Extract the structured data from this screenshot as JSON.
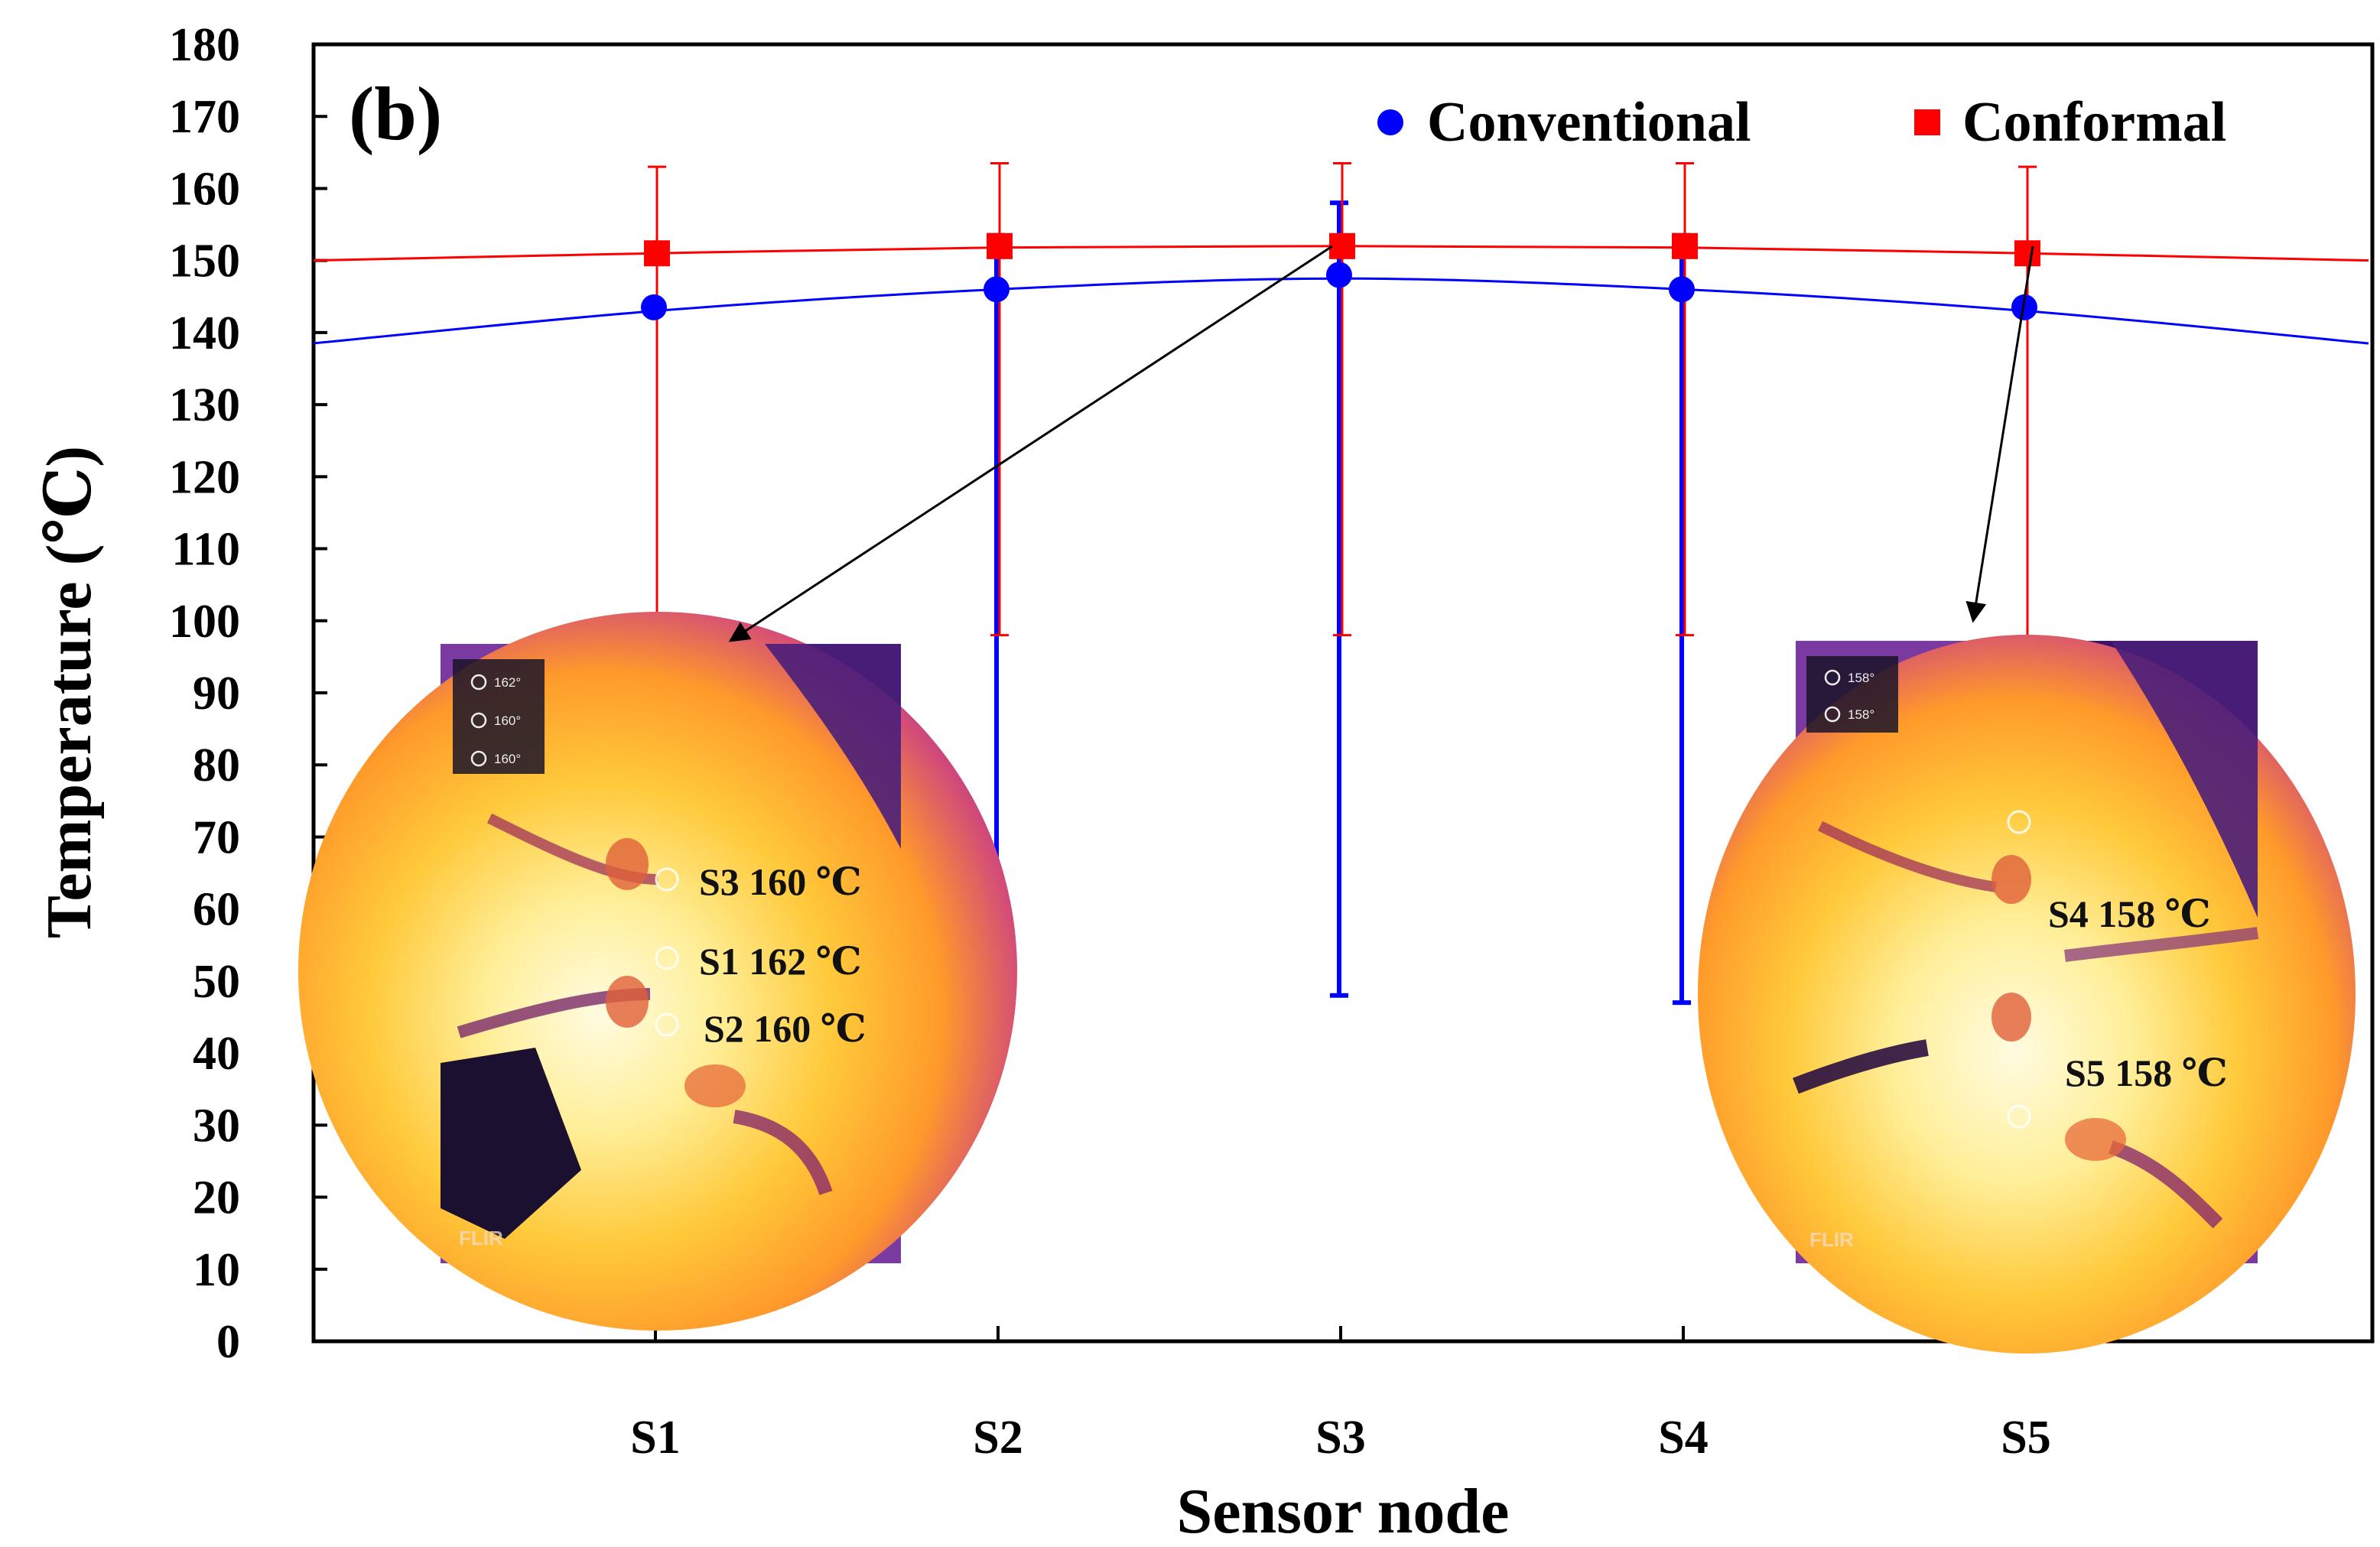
{
  "chart_data": {
    "type": "scatter",
    "panel_label": "(b)",
    "xlabel": "Sensor node",
    "ylabel": "Temperature (℃)",
    "categories": [
      "S1",
      "S2",
      "S3",
      "S4",
      "S5"
    ],
    "ylim": [
      0,
      180
    ],
    "yticks": [
      0,
      10,
      20,
      30,
      40,
      50,
      60,
      70,
      80,
      90,
      100,
      110,
      120,
      130,
      140,
      150,
      160,
      170,
      180
    ],
    "grid": false,
    "legend_position": "top-right",
    "series": [
      {
        "name": "Conventional",
        "marker": "circle",
        "color": "#0000ff",
        "values": [
          143.5,
          146,
          148,
          146,
          143.5
        ],
        "err_upper": [
          143.5,
          153.5,
          158,
          153.5,
          143.5
        ],
        "err_lower": [
          143.5,
          47,
          48,
          47,
          143.5
        ],
        "fit_curve": [
          138.5,
          143,
          146,
          147.5,
          146,
          143,
          138.5
        ]
      },
      {
        "name": "Conformal",
        "marker": "square",
        "color": "#ff0000",
        "values": [
          151,
          152,
          152,
          152,
          151
        ],
        "err_upper": [
          163,
          163.5,
          163.5,
          163.5,
          163
        ],
        "err_lower": [
          97,
          98,
          98,
          98,
          97
        ],
        "fit_curve": [
          150,
          151,
          151.8,
          152,
          151.8,
          151,
          150
        ]
      }
    ],
    "insets": [
      {
        "id": "left",
        "points_to": "S3",
        "readouts": [
          "162°",
          "160°",
          "160°"
        ],
        "labels": [
          "S3 160 ℃",
          "S1 162 ℃",
          "S2 160 ℃"
        ],
        "brand": "FLIR"
      },
      {
        "id": "right",
        "points_to": "S5",
        "readouts": [
          "158°",
          "158°"
        ],
        "labels": [
          "S4 158 ℃",
          "S5 158 ℃"
        ],
        "brand": "FLIR"
      }
    ]
  }
}
